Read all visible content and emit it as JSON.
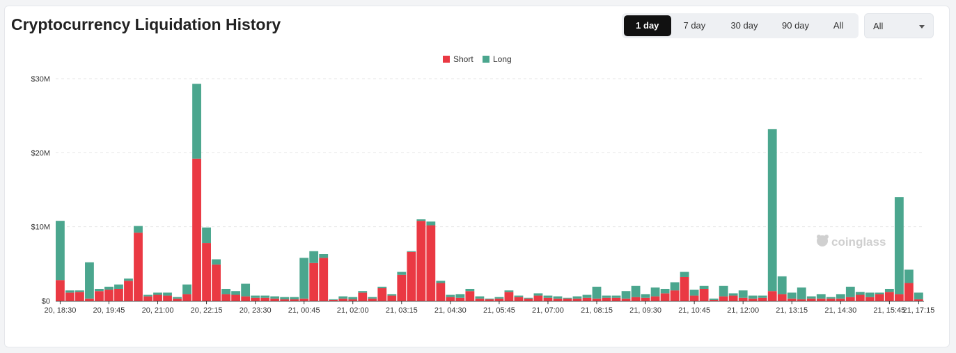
{
  "title": "Cryptocurrency Liquidation History",
  "tabs": [
    {
      "label": "1 day",
      "active": true
    },
    {
      "label": "7 day",
      "active": false
    },
    {
      "label": "30 day",
      "active": false
    },
    {
      "label": "90 day",
      "active": false
    },
    {
      "label": "All",
      "active": false
    }
  ],
  "select": {
    "value": "All"
  },
  "watermark": "coinglass",
  "chart_data": {
    "type": "bar",
    "stacked": true,
    "legend_position": "top-center",
    "grid": true,
    "y_unit": "$M",
    "ylim": [
      0,
      30
    ],
    "yticks": [
      {
        "value": 0,
        "label": "$0"
      },
      {
        "value": 10,
        "label": "$10M"
      },
      {
        "value": 20,
        "label": "$20M"
      },
      {
        "value": 30,
        "label": "$30M"
      }
    ],
    "xtick_labels": [
      "20, 18:30",
      "20, 19:45",
      "20, 21:00",
      "20, 22:15",
      "20, 23:30",
      "21, 00:45",
      "21, 02:00",
      "21, 03:15",
      "21, 04:30",
      "21, 05:45",
      "21, 07:00",
      "21, 08:15",
      "21, 09:30",
      "21, 10:45",
      "21, 12:00",
      "21, 13:15",
      "21, 14:30",
      "21, 15:45",
      "21, 17:15"
    ],
    "xtick_every": 5,
    "series": [
      {
        "name": "Short",
        "color": "#ea3943",
        "values": [
          2.8,
          1.1,
          1.2,
          0.3,
          1.3,
          1.5,
          1.6,
          2.7,
          9.2,
          0.6,
          0.8,
          0.7,
          0.3,
          0.9,
          19.2,
          7.8,
          4.9,
          0.9,
          0.8,
          0.6,
          0.4,
          0.4,
          0.3,
          0.2,
          0.2,
          0.3,
          5.1,
          5.8,
          0.1,
          0.3,
          0.2,
          1.1,
          0.3,
          1.7,
          0.7,
          3.5,
          6.6,
          10.8,
          10.2,
          2.4,
          0.5,
          0.4,
          1.3,
          0.3,
          0.2,
          0.3,
          1.2,
          0.5,
          0.3,
          0.7,
          0.4,
          0.3,
          0.3,
          0.3,
          0.4,
          0.3,
          0.4,
          0.4,
          0.3,
          0.5,
          0.4,
          0.6,
          1.0,
          1.4,
          3.2,
          0.7,
          1.6,
          0.1,
          0.6,
          0.7,
          0.4,
          0.3,
          0.4,
          1.3,
          0.9,
          0.3,
          0.2,
          0.3,
          0.3,
          0.3,
          0.3,
          0.5,
          0.8,
          0.5,
          0.9,
          1.2,
          0.9,
          2.4,
          0.2
        ]
      },
      {
        "name": "Long",
        "color": "#4ba68e",
        "values": [
          8.0,
          0.3,
          0.2,
          4.9,
          0.3,
          0.4,
          0.6,
          0.3,
          0.9,
          0.2,
          0.3,
          0.4,
          0.2,
          1.3,
          10.1,
          2.1,
          0.7,
          0.7,
          0.5,
          1.7,
          0.3,
          0.3,
          0.3,
          0.3,
          0.3,
          5.5,
          1.6,
          0.5,
          0.1,
          0.3,
          0.3,
          0.2,
          0.2,
          0.2,
          0.2,
          0.4,
          0.1,
          0.2,
          0.5,
          0.3,
          0.3,
          0.5,
          0.3,
          0.3,
          0.1,
          0.2,
          0.2,
          0.2,
          0.1,
          0.3,
          0.3,
          0.3,
          0.1,
          0.3,
          0.4,
          1.6,
          0.3,
          0.3,
          1.0,
          1.5,
          0.5,
          1.2,
          0.6,
          1.1,
          0.7,
          0.8,
          0.4,
          0.2,
          1.4,
          0.3,
          1.0,
          0.4,
          0.3,
          21.9,
          2.4,
          0.8,
          1.6,
          0.3,
          0.6,
          0.2,
          0.6,
          1.4,
          0.4,
          0.6,
          0.2,
          0.4,
          13.1,
          1.8,
          0.9
        ]
      }
    ]
  }
}
